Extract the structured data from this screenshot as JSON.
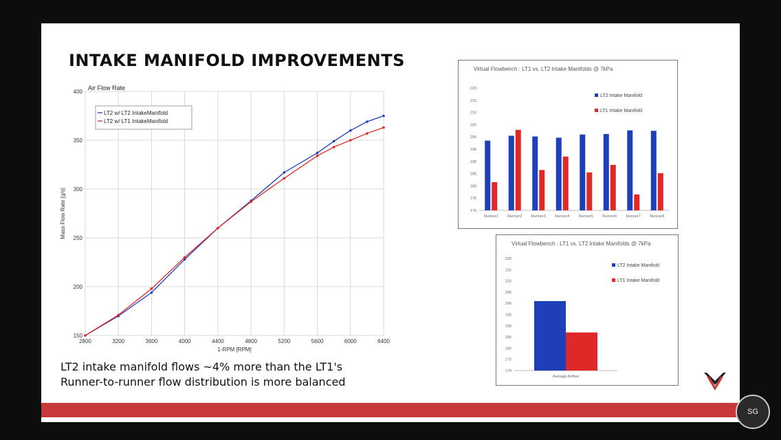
{
  "slide": {
    "title": "INTAKE MANIFOLD IMPROVEMENTS",
    "captions": [
      "LT2 intake manifold flows ~4% more than the LT1's",
      "Runner-to-runner flow distribution is more balanced"
    ],
    "colors": {
      "band": "#c8393a",
      "lt2": "#1f3fb8",
      "lt1": "#e02828"
    }
  },
  "chart_data": [
    {
      "type": "line",
      "title": "Air Flow Rate",
      "xlabel": "1-RPM [RPM]",
      "ylabel": "Mass Flow Rate [g/s]",
      "x": [
        2800,
        3200,
        3600,
        4000,
        4400,
        4800,
        5200,
        5600,
        5800,
        6000,
        6200,
        6400
      ],
      "xticks": [
        2800,
        3200,
        3600,
        4000,
        4400,
        4800,
        5200,
        5600,
        6000,
        6400
      ],
      "yticks": [
        150,
        200,
        250,
        300,
        350,
        400
      ],
      "xlim": [
        2800,
        6400
      ],
      "ylim": [
        150,
        400
      ],
      "grid": true,
      "legend": "top-left",
      "series": [
        {
          "name": "LT2 w/ LT2 IntakeManifold",
          "color": "#1f3fb8",
          "values": [
            150,
            170,
            194,
            228,
            260,
            288,
            317,
            337,
            349,
            360,
            369,
            375
          ]
        },
        {
          "name": "LT2 w/ LT1 IntakeManifold",
          "color": "#e02828",
          "values": [
            150,
            171,
            198,
            230,
            260,
            287,
            311,
            334,
            343,
            350,
            357,
            363
          ]
        }
      ]
    },
    {
      "type": "bar",
      "title": "Virtual Flowbench : LT1 vs. LT2 Intake Manifolds @ 7kPa",
      "categories": [
        "Runner1",
        "Runner2",
        "Runner3",
        "Runner4",
        "Runner5",
        "Runner6",
        "Runner7",
        "Runner8"
      ],
      "ylim": [
        170,
        220
      ],
      "yticks": [
        170,
        175,
        180,
        185,
        190,
        195,
        200,
        205,
        210,
        215,
        220
      ],
      "legend": "top-right",
      "series": [
        {
          "name": "LT2 Intake Manifold",
          "color": "#1f3fb8",
          "values": [
            198.5,
            200.5,
            200.2,
            199.7,
            201,
            201.2,
            202.7,
            202.5
          ]
        },
        {
          "name": "LT1 Intake Manifold",
          "color": "#e02828",
          "values": [
            181.5,
            202.9,
            186.5,
            192,
            185.5,
            188.6,
            176.5,
            185.2
          ]
        }
      ]
    },
    {
      "type": "bar",
      "title": "Virtual Flowbench : LT1 vs. LT2 Intake Manifolds @ 7kPa",
      "categories": [
        "Average Airflow"
      ],
      "ylim": [
        170,
        220
      ],
      "yticks": [
        170,
        175,
        180,
        185,
        190,
        195,
        200,
        205,
        210,
        215,
        220
      ],
      "legend": "top-right",
      "series": [
        {
          "name": "LT2 Intake Manifold",
          "color": "#1f3fb8",
          "values": [
            201
          ]
        },
        {
          "name": "LT1 Intake Manifold",
          "color": "#e02828",
          "values": [
            187
          ]
        }
      ]
    }
  ],
  "watermark": {
    "text": "SG"
  }
}
